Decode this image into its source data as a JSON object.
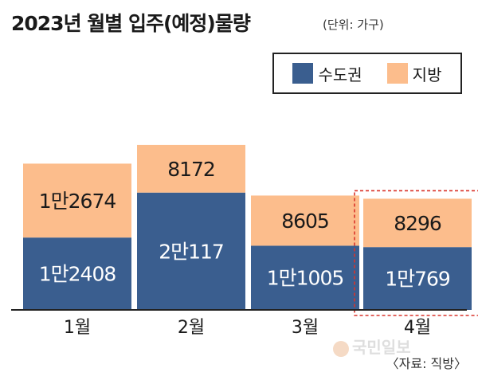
{
  "title": "2023년 월별 입주(예정)물량",
  "unit": "(단위: 가구)",
  "source": "〈자료: 직방〉",
  "watermark": "국민일보",
  "colors": {
    "capital": "#3a5e8f",
    "local": "#fcbd8c",
    "highlight": "#d9342b",
    "baseline": "#222222"
  },
  "chart_data": {
    "type": "bar",
    "stacked": true,
    "categories": [
      "1월",
      "2월",
      "3월",
      "4월"
    ],
    "series": [
      {
        "name": "수도권",
        "values": [
          12408,
          20117,
          11005,
          10769
        ],
        "labels": [
          "1만2408",
          "2만117",
          "1만1005",
          "1만769"
        ]
      },
      {
        "name": "지방",
        "values": [
          12674,
          8172,
          8605,
          8296
        ],
        "labels": [
          "1만2674",
          "8172",
          "8605",
          "8296"
        ]
      }
    ],
    "legend_position": "top-right",
    "highlighted_category": "4월"
  }
}
